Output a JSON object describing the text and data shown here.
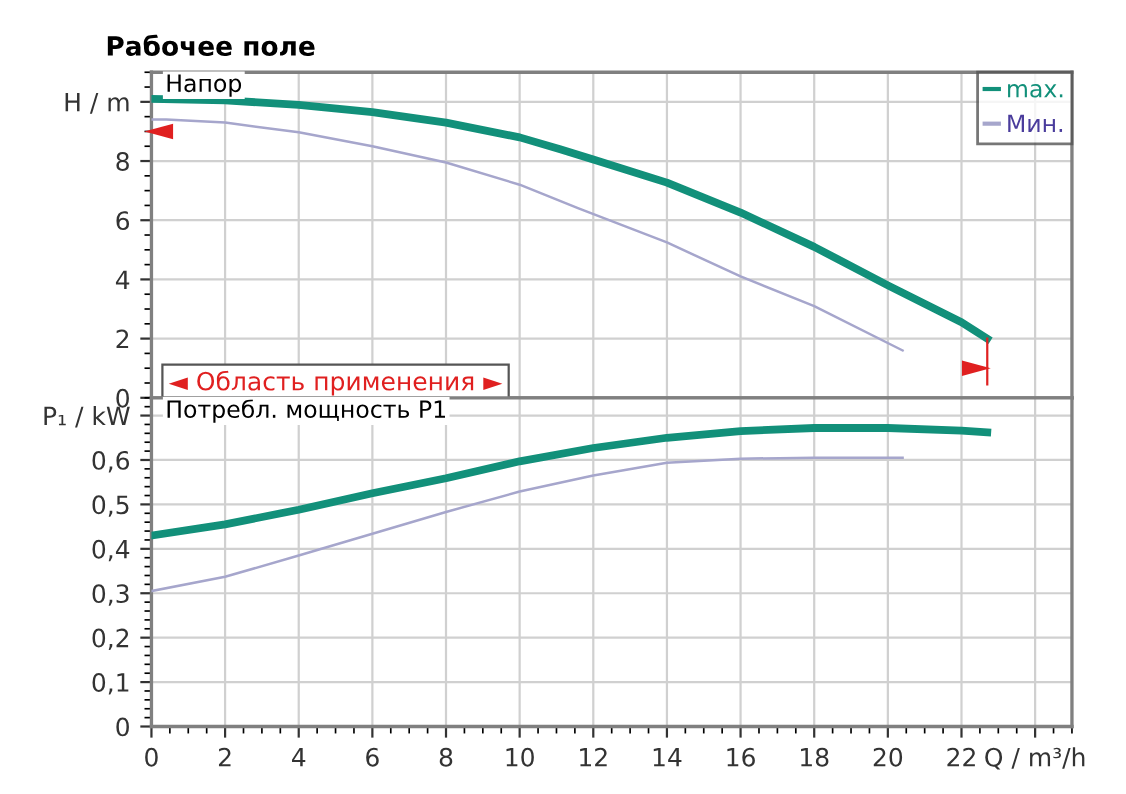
{
  "chart_data": [
    {
      "type": "line",
      "title": "Рабочее поле",
      "annotations": [
        "Напор",
        "◄ Область применения ►"
      ],
      "x": [
        0,
        2,
        4,
        6,
        8,
        10,
        11.1,
        12,
        14,
        16,
        18,
        20,
        22,
        22.7
      ],
      "series": [
        {
          "name": "max.",
          "color": "#12907a",
          "values": [
            10.1,
            10.05,
            9.9,
            9.65,
            9.3,
            8.8,
            8.4,
            8.05,
            7.27,
            6.26,
            5.1,
            3.8,
            2.55,
            2.0
          ]
        },
        {
          "name": "Мин.",
          "color": "#a6a6cc",
          "x": [
            0,
            0.4,
            2,
            4,
            6,
            8,
            10,
            11.6,
            14,
            16,
            18,
            20.4
          ],
          "values": [
            9.4,
            9.4,
            9.3,
            8.97,
            8.5,
            7.95,
            7.2,
            6.4,
            5.25,
            4.1,
            3.1,
            1.6
          ]
        }
      ],
      "xlim": [
        0,
        25
      ],
      "xticks": [
        0,
        2,
        4,
        6,
        8,
        10,
        12,
        14,
        16,
        18,
        20,
        22,
        24
      ],
      "ylim": [
        0,
        11
      ],
      "yticks": [
        0,
        2,
        4,
        6,
        8,
        {
          "value": 10,
          "label": "H / m"
        }
      ],
      "tick_labels": "y",
      "grid": true,
      "legend": "top right",
      "line_style": "solid",
      "marker": "none"
    },
    {
      "type": "line",
      "annotations": [
        "Потребл. мощность P1"
      ],
      "x": [
        0,
        2,
        4,
        6,
        8,
        10,
        12,
        14,
        16,
        18,
        20,
        22,
        22.7
      ],
      "series": [
        {
          "color": "#12907a",
          "values": [
            0.43,
            0.455,
            0.488,
            0.525,
            0.559,
            0.597,
            0.627,
            0.65,
            0.665,
            0.672,
            0.672,
            0.666,
            0.662
          ]
        },
        {
          "color": "#a6a6cc",
          "x": [
            0,
            2,
            4,
            6,
            8,
            10,
            12,
            14,
            16,
            18,
            20.4
          ],
          "values": [
            0.305,
            0.337,
            0.385,
            0.434,
            0.483,
            0.529,
            0.565,
            0.594,
            0.603,
            0.605,
            0.605
          ]
        }
      ],
      "xlim": [
        0,
        25
      ],
      "xticks": [
        0,
        2,
        4,
        6,
        8,
        10,
        12,
        14,
        16,
        18,
        20,
        22,
        {
          "value": 24,
          "label": "Q / m³/h"
        }
      ],
      "ylim": [
        0,
        0.74
      ],
      "yticks": [
        {
          "value": 0,
          "label": "0"
        },
        {
          "value": 0.1,
          "label": "0,1"
        },
        {
          "value": 0.2,
          "label": "0,2"
        },
        {
          "value": 0.3,
          "label": "0,3"
        },
        {
          "value": 0.4,
          "label": "0,4"
        },
        {
          "value": 0.5,
          "label": "0,5"
        },
        {
          "value": 0.6,
          "label": "0,6"
        },
        {
          "value": 0.7,
          "label": "P₁ / kW"
        }
      ],
      "grid": true,
      "line_style": "solid",
      "marker": "none"
    }
  ]
}
